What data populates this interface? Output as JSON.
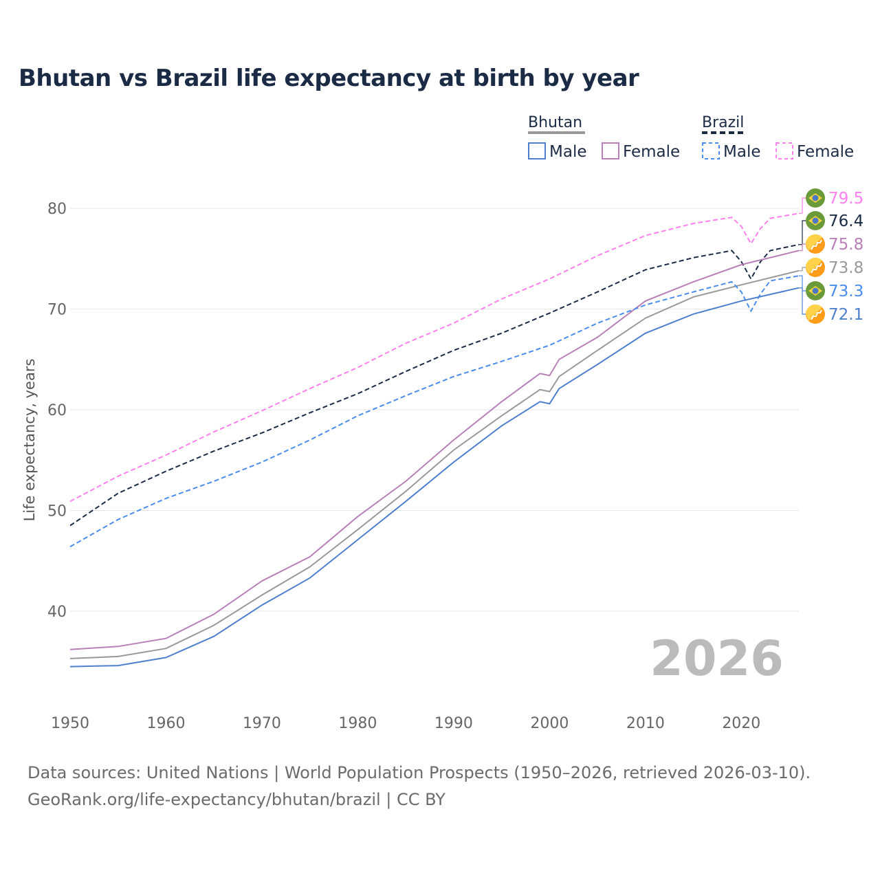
{
  "chart_data": {
    "type": "line",
    "title": "Bhutan vs Brazil life expectancy at birth by year",
    "xlabel": "",
    "ylabel": "Life expectancy, years",
    "xlim": [
      1950,
      2026
    ],
    "ylim": [
      31.5,
      83
    ],
    "xticks": [
      1950,
      1960,
      1970,
      1980,
      1990,
      2000,
      2010,
      2020
    ],
    "yticks": [
      40,
      50,
      60,
      70,
      80
    ],
    "grid": true,
    "year_watermark": "2026",
    "legend": {
      "placement": "top-right",
      "groups": [
        {
          "name": "Bhutan",
          "line_color": "#999999",
          "dashed": false,
          "items": [
            {
              "label": "Male",
              "color": "#4e7fcf"
            },
            {
              "label": "Female",
              "color": "#b97fb8"
            }
          ]
        },
        {
          "name": "Brazil",
          "line_color": "#1b2b45",
          "dashed": true,
          "items": [
            {
              "label": "Male",
              "color": "#4a8cf0"
            },
            {
              "label": "Female",
              "color": "#ff80ee"
            }
          ]
        }
      ]
    },
    "series": [
      {
        "name": "Brazil Female",
        "country": "Brazil",
        "color": "#ff80ee",
        "dashed": true,
        "end_label": "79.5",
        "x": [
          1950,
          1955,
          1960,
          1965,
          1970,
          1975,
          1980,
          1985,
          1990,
          1995,
          2000,
          2005,
          2010,
          2015,
          2019,
          2020,
          2021,
          2022,
          2023,
          2026
        ],
        "y": [
          50.9,
          53.4,
          55.5,
          57.8,
          59.9,
          62.1,
          64.2,
          66.6,
          68.6,
          71.0,
          73.0,
          75.3,
          77.3,
          78.5,
          79.1,
          78.2,
          76.5,
          78.0,
          79.0,
          79.5
        ]
      },
      {
        "name": "Brazil",
        "country": "Brazil",
        "color": "#1b2b45",
        "dashed": true,
        "end_label": "76.4",
        "x": [
          1950,
          1955,
          1960,
          1965,
          1970,
          1975,
          1980,
          1985,
          1990,
          1995,
          2000,
          2005,
          2010,
          2015,
          2019,
          2020,
          2021,
          2022,
          2023,
          2026
        ],
        "y": [
          48.5,
          51.7,
          53.9,
          55.9,
          57.7,
          59.7,
          61.6,
          63.8,
          65.9,
          67.6,
          69.6,
          71.7,
          73.9,
          75.1,
          75.8,
          74.7,
          73.0,
          74.7,
          75.8,
          76.4
        ]
      },
      {
        "name": "Bhutan Female",
        "country": "Bhutan",
        "color": "#b97fb8",
        "dashed": false,
        "end_label": "75.8",
        "x": [
          1950,
          1955,
          1960,
          1965,
          1970,
          1975,
          1980,
          1985,
          1990,
          1995,
          1999,
          2000,
          2001,
          2005,
          2010,
          2015,
          2020,
          2026
        ],
        "y": [
          36.2,
          36.5,
          37.3,
          39.7,
          43.0,
          45.4,
          49.4,
          52.9,
          57.0,
          60.8,
          63.6,
          63.4,
          65.0,
          67.2,
          70.8,
          72.7,
          74.4,
          75.8
        ]
      },
      {
        "name": "Bhutan",
        "country": "Bhutan",
        "color": "#999999",
        "dashed": false,
        "end_label": "73.8",
        "x": [
          1950,
          1955,
          1960,
          1965,
          1970,
          1975,
          1980,
          1985,
          1990,
          1995,
          1999,
          2000,
          2001,
          2005,
          2010,
          2015,
          2020,
          2026
        ],
        "y": [
          35.3,
          35.5,
          36.3,
          38.6,
          41.6,
          44.4,
          48.1,
          51.9,
          56.0,
          59.4,
          62.0,
          61.8,
          63.3,
          65.9,
          69.1,
          71.2,
          72.4,
          73.8
        ]
      },
      {
        "name": "Brazil Male",
        "country": "Brazil",
        "color": "#4a8cf0",
        "dashed": true,
        "end_label": "73.3",
        "x": [
          1950,
          1955,
          1960,
          1965,
          1970,
          1975,
          1980,
          1985,
          1990,
          1995,
          2000,
          2005,
          2010,
          2015,
          2019,
          2020,
          2021,
          2022,
          2023,
          2026
        ],
        "y": [
          46.4,
          49.1,
          51.2,
          52.9,
          54.8,
          57.0,
          59.4,
          61.4,
          63.3,
          64.8,
          66.4,
          68.6,
          70.4,
          71.7,
          72.7,
          71.7,
          69.8,
          71.5,
          72.8,
          73.3
        ]
      },
      {
        "name": "Bhutan Male",
        "country": "Bhutan",
        "color": "#4e7fcf",
        "dashed": false,
        "end_label": "72.1",
        "x": [
          1950,
          1955,
          1960,
          1965,
          1970,
          1975,
          1980,
          1985,
          1990,
          1995,
          1999,
          2000,
          2001,
          2005,
          2010,
          2015,
          2020,
          2026
        ],
        "y": [
          34.5,
          34.6,
          35.4,
          37.5,
          40.6,
          43.3,
          47.1,
          50.9,
          54.8,
          58.4,
          60.8,
          60.6,
          62.1,
          64.5,
          67.6,
          69.5,
          70.8,
          72.1
        ]
      }
    ]
  },
  "source": {
    "line1": "Data sources: United Nations | World Population Prospects (1950–2026, retrieved 2026-03-10).",
    "line2": "GeoRank.org/life-expectancy/bhutan/brazil | CC BY"
  }
}
